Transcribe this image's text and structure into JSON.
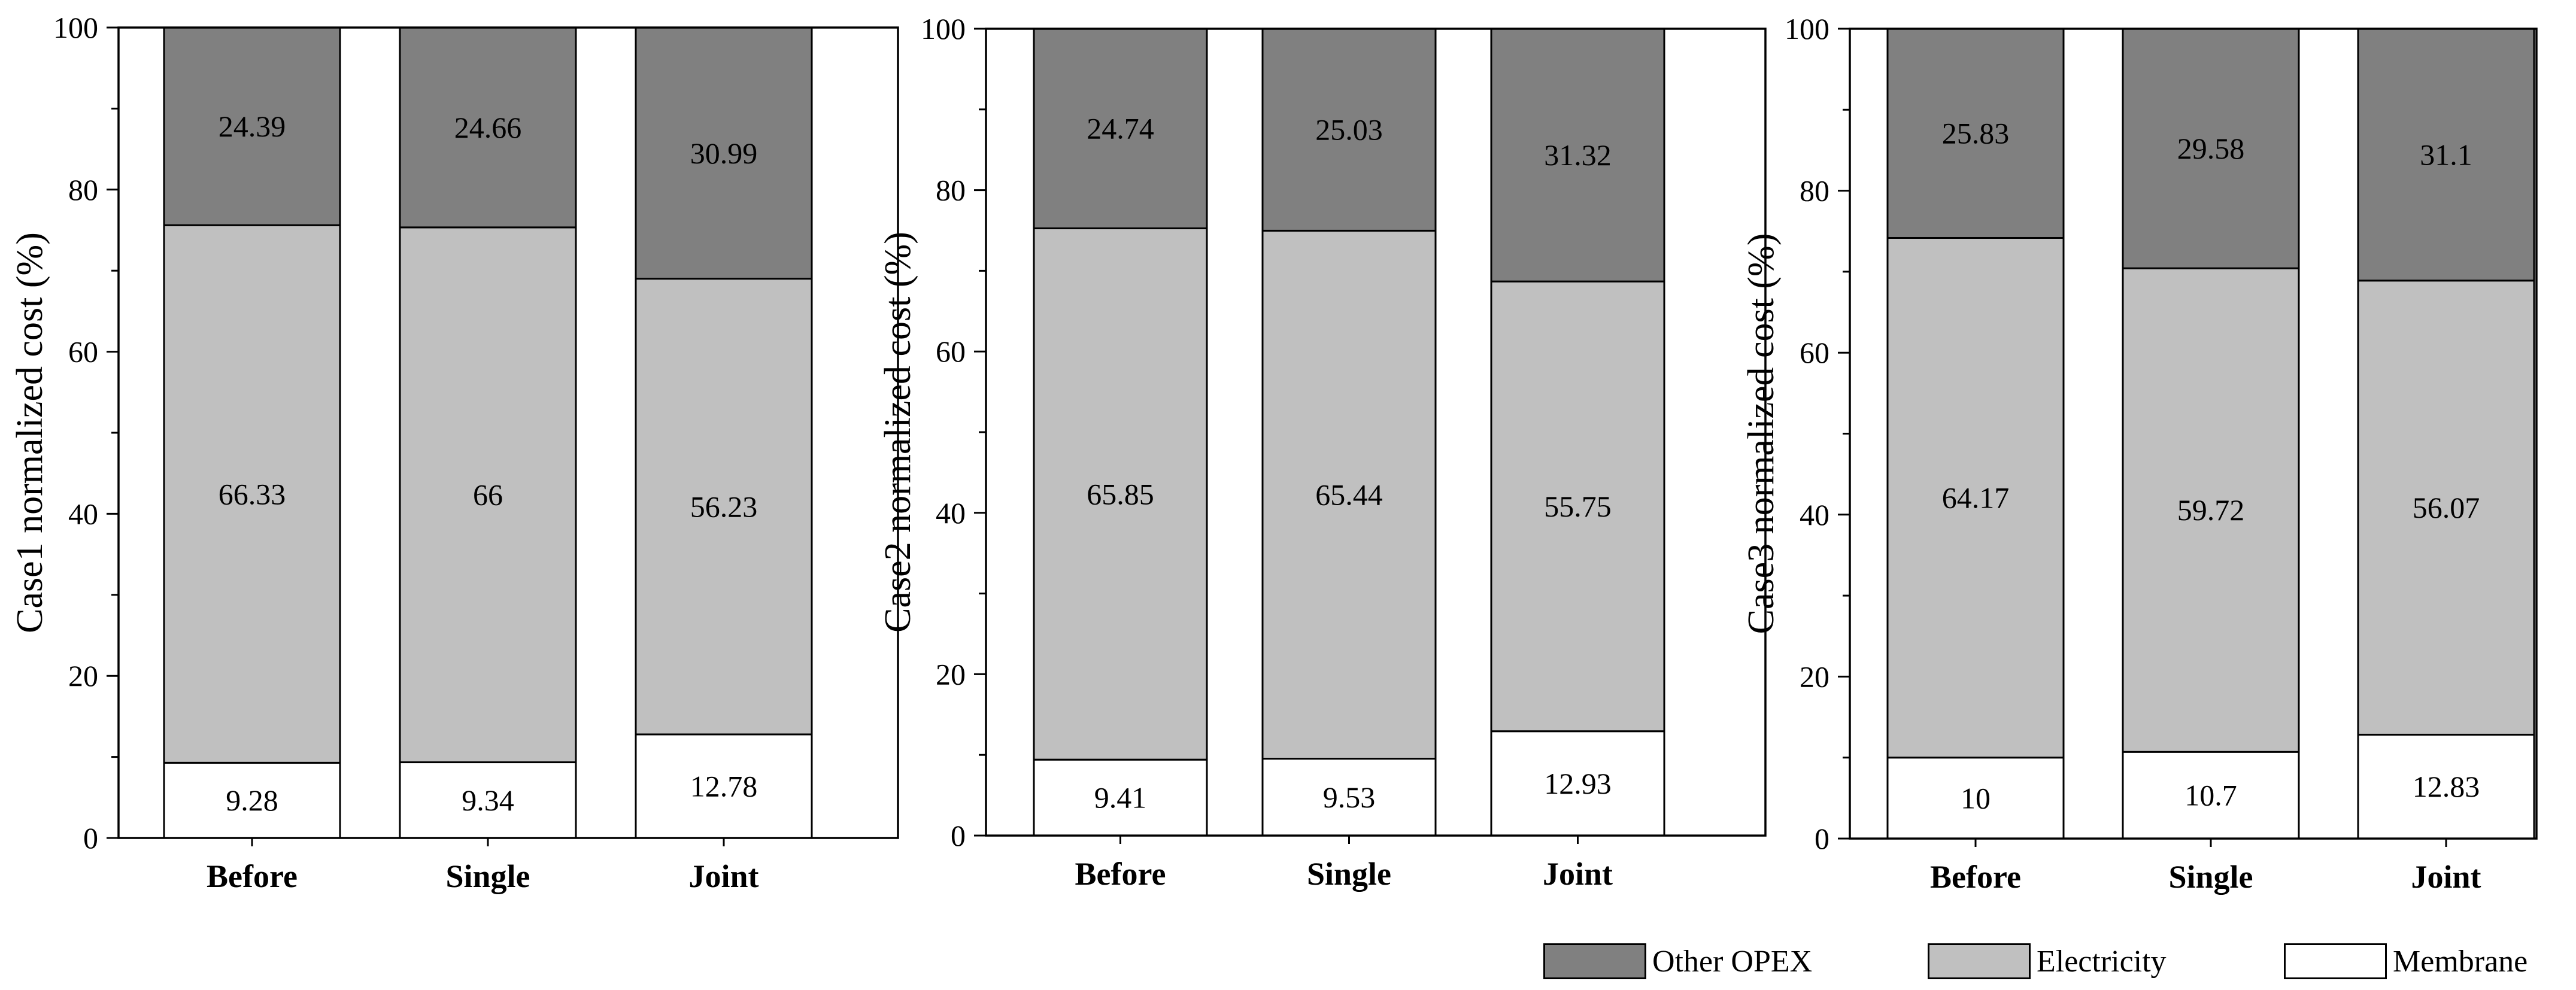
{
  "chart_data": [
    {
      "type": "bar",
      "stacked": true,
      "title": "",
      "xlabel": "",
      "ylabel": "Case1 normalized cost (%)",
      "ylim": [
        0,
        100
      ],
      "yticks": [
        0,
        20,
        40,
        60,
        80,
        100
      ],
      "categories": [
        "Before",
        "Single",
        "Joint"
      ],
      "series": [
        {
          "name": "Membrane",
          "values": [
            9.28,
            9.34,
            12.78
          ]
        },
        {
          "name": "Electricity",
          "values": [
            66.33,
            66,
            56.23
          ]
        },
        {
          "name": "Other OPEX",
          "values": [
            24.39,
            24.66,
            30.99
          ]
        }
      ]
    },
    {
      "type": "bar",
      "stacked": true,
      "title": "",
      "xlabel": "",
      "ylabel": "Case2 normalized cost (%)",
      "ylim": [
        0,
        100
      ],
      "yticks": [
        0,
        20,
        40,
        60,
        80,
        100
      ],
      "categories": [
        "Before",
        "Single",
        "Joint"
      ],
      "series": [
        {
          "name": "Membrane",
          "values": [
            9.41,
            9.53,
            12.93
          ]
        },
        {
          "name": "Electricity",
          "values": [
            65.85,
            65.44,
            55.75
          ]
        },
        {
          "name": "Other OPEX",
          "values": [
            24.74,
            25.03,
            31.32
          ]
        }
      ]
    },
    {
      "type": "bar",
      "stacked": true,
      "title": "",
      "xlabel": "",
      "ylabel": "Case3 normalized cost (%)",
      "ylim": [
        0,
        100
      ],
      "yticks": [
        0,
        20,
        40,
        60,
        80,
        100
      ],
      "categories": [
        "Before",
        "Single",
        "Joint"
      ],
      "series": [
        {
          "name": "Membrane",
          "values": [
            10,
            10.7,
            12.83
          ]
        },
        {
          "name": "Electricity",
          "values": [
            64.17,
            59.72,
            56.07
          ]
        },
        {
          "name": "Other OPEX",
          "values": [
            25.83,
            29.58,
            31.1
          ]
        }
      ]
    }
  ],
  "legend": {
    "placement": "bottom-right",
    "items": [
      {
        "name": "Other OPEX",
        "color": "#808080"
      },
      {
        "name": "Electricity",
        "color": "#c0c0c0"
      },
      {
        "name": "Membrane",
        "color": "#ffffff"
      }
    ]
  },
  "colors": {
    "Other OPEX": "#808080",
    "Electricity": "#c0c0c0",
    "Membrane": "#ffffff",
    "axis": "#000000"
  }
}
